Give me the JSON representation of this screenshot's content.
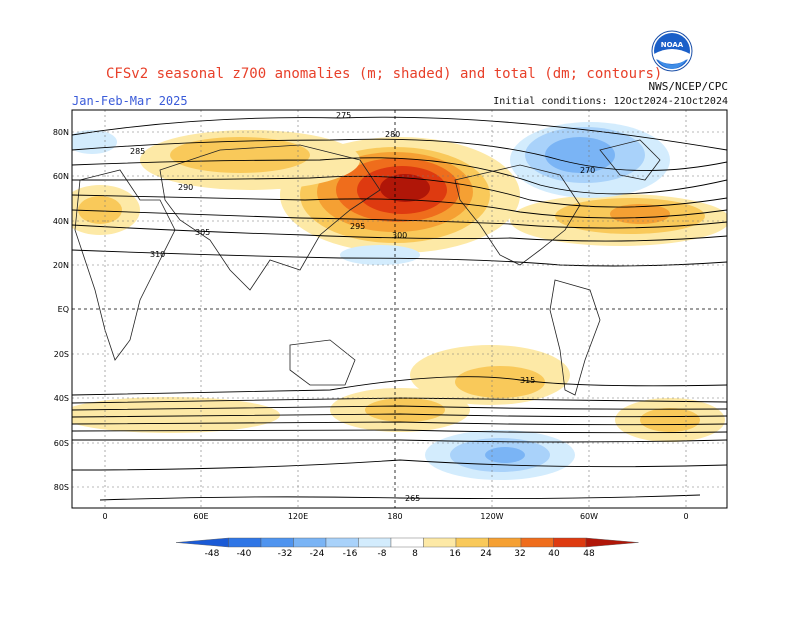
{
  "header": {
    "title": "CFSv2 seasonal z700 anomalies (m; shaded) and total (dm; contours)",
    "season": "Jan-Feb-Mar 2025",
    "initial_conditions": "Initial conditions: 12Oct2024-21Oct2024",
    "agency": "NWS/NCEP/CPC",
    "logo_text": "NOAA"
  },
  "map": {
    "lat_labels": [
      "80N",
      "60N",
      "40N",
      "20N",
      "EQ",
      "20S",
      "40S",
      "60S",
      "80S"
    ],
    "lon_labels": [
      "0",
      "60E",
      "120E",
      "180",
      "120W",
      "60W",
      "0"
    ],
    "contour_labels": [
      "275",
      "280",
      "285",
      "290",
      "295",
      "300",
      "305",
      "310",
      "270",
      "315",
      "265"
    ]
  },
  "colorbar": {
    "ticks": [
      "-48",
      "-40",
      "-32",
      "-24",
      "-16",
      "-8",
      "8",
      "16",
      "24",
      "32",
      "40",
      "48"
    ],
    "colors": [
      "#1a5ad6",
      "#2f76e6",
      "#4f94ef",
      "#7ab4f5",
      "#a9d2fa",
      "#d3ecfd",
      "#ffffff",
      "#fde9a6",
      "#f9c95a",
      "#f5a033",
      "#ef6d1c",
      "#de3a10",
      "#b01608"
    ]
  }
}
